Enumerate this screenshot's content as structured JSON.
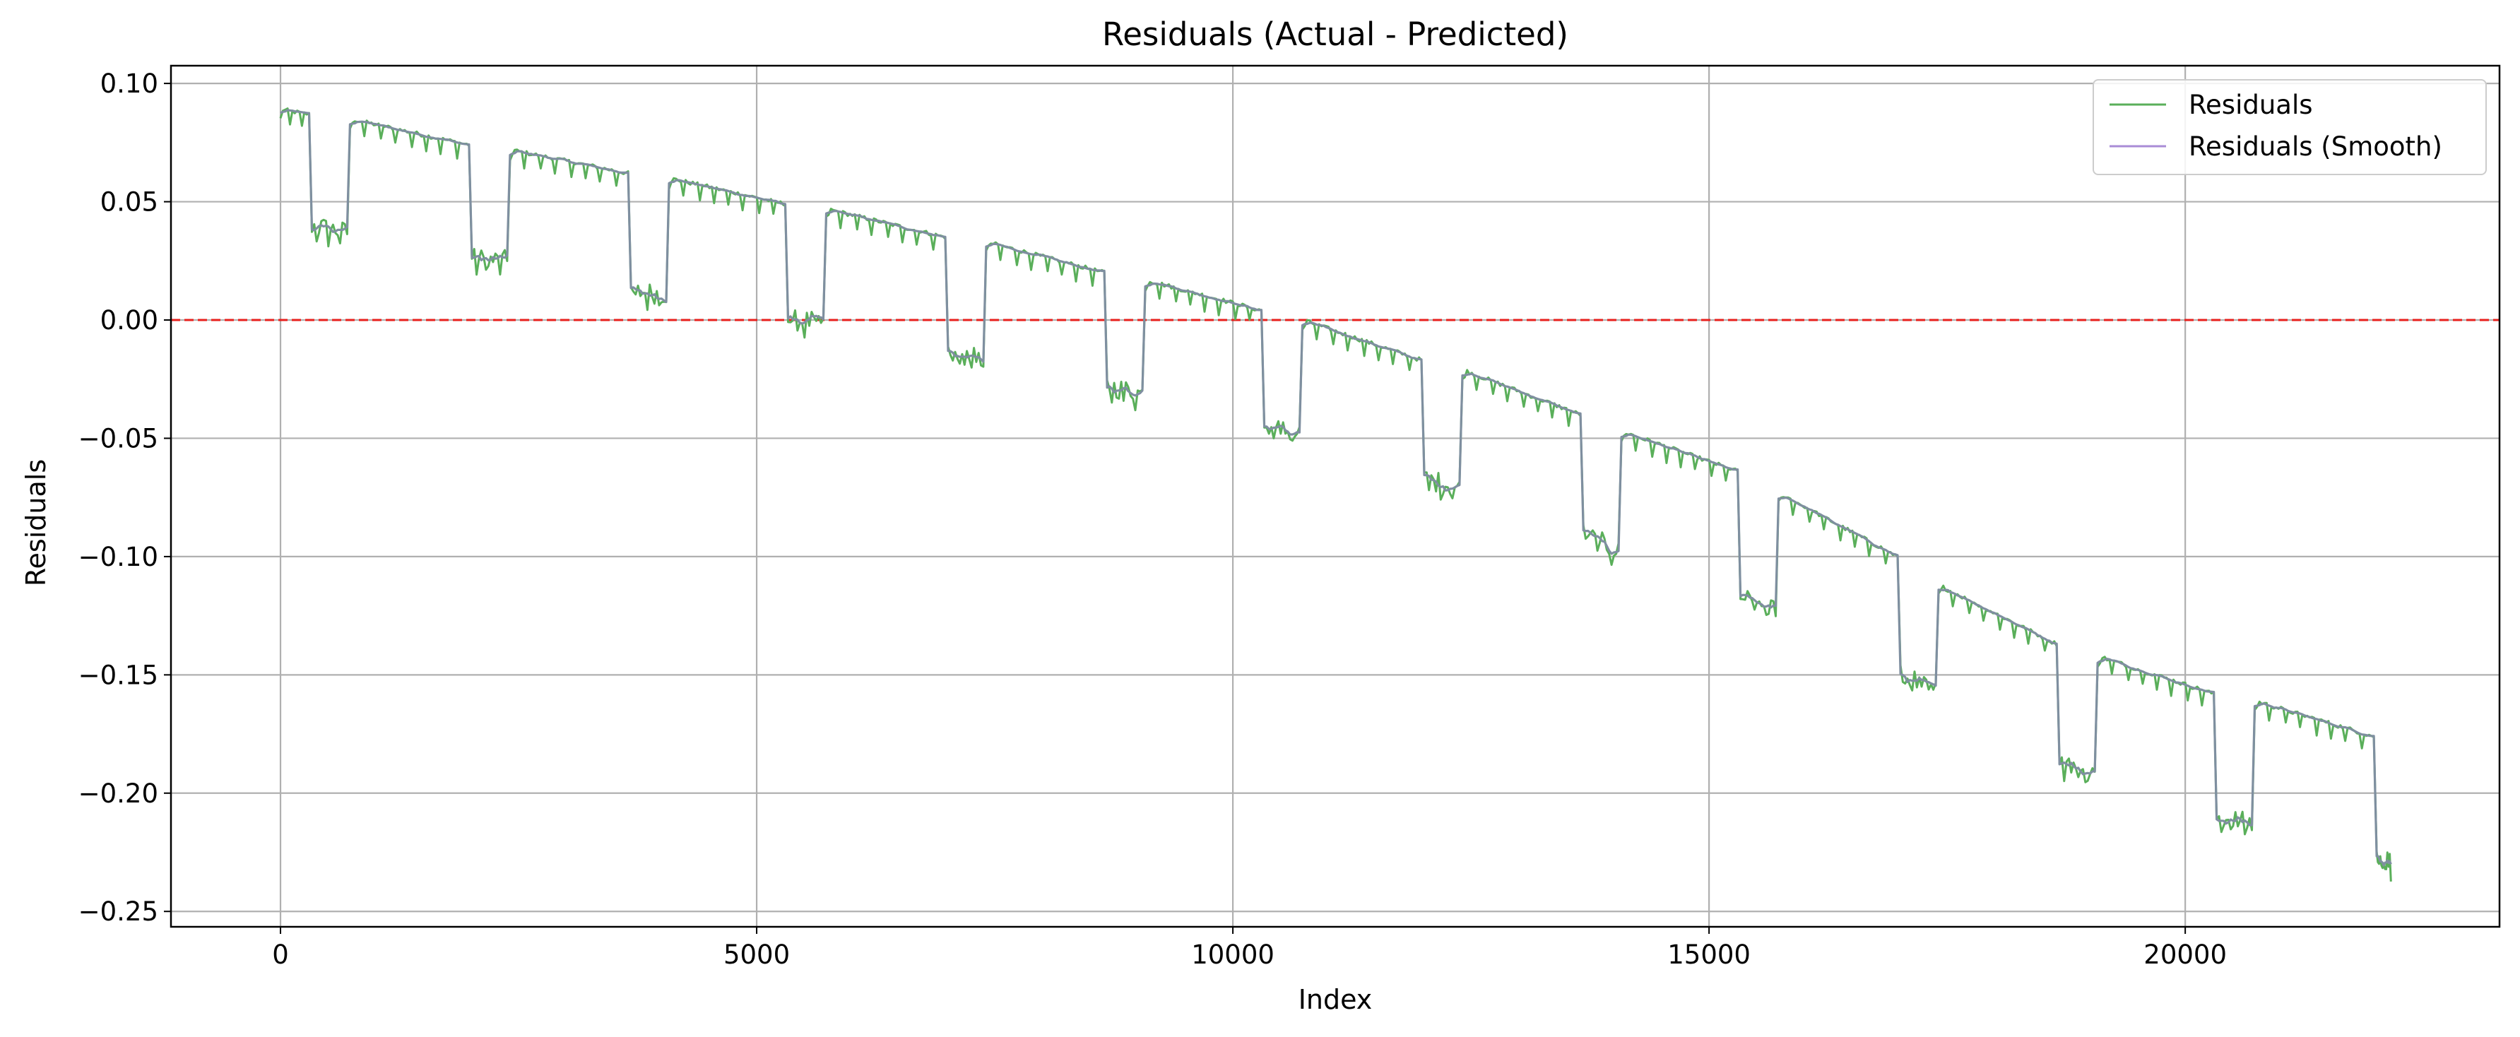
{
  "chart_data": {
    "type": "line",
    "title": "Residuals (Actual - Predicted)",
    "xlabel": "Index",
    "ylabel": "Residuals",
    "xlim": [
      -1150,
      23300
    ],
    "ylim": [
      -0.2565,
      0.1075
    ],
    "xticks": [
      0,
      5000,
      10000,
      15000,
      20000
    ],
    "xtick_labels": [
      "0",
      "5000",
      "10000",
      "15000",
      "20000"
    ],
    "yticks": [
      0.1,
      0.05,
      0.0,
      -0.05,
      -0.1,
      -0.15,
      -0.2,
      -0.25
    ],
    "ytick_labels": [
      "0.10",
      "0.05",
      "0.00",
      "−0.05",
      "−0.10",
      "−0.15",
      "−0.20",
      "−0.25"
    ],
    "grid": true,
    "legend_position": "top-right",
    "reference_line": {
      "y": 0.0,
      "color": "#e8201c",
      "style": "dashed"
    },
    "series": [
      {
        "name": "Residuals",
        "color": "#5aaf5a"
      },
      {
        "name": "Residuals (Smooth)",
        "color": "#a98cd6"
      }
    ],
    "overlap_color": "#7f8fa0",
    "segments": [
      {
        "x_start": 0,
        "x_end": 300,
        "y_start": 0.089,
        "y_end": 0.087
      },
      {
        "x_start": 330,
        "x_end": 700,
        "y_start": 0.04,
        "y_end": 0.037
      },
      {
        "x_start": 730,
        "x_end": 1980,
        "y_start": 0.085,
        "y_end": 0.074
      },
      {
        "x_start": 2010,
        "x_end": 2380,
        "y_start": 0.026,
        "y_end": 0.025
      },
      {
        "x_start": 2410,
        "x_end": 3650,
        "y_start": 0.072,
        "y_end": 0.062
      },
      {
        "x_start": 3680,
        "x_end": 4050,
        "y_start": 0.012,
        "y_end": 0.011
      },
      {
        "x_start": 4080,
        "x_end": 5300,
        "y_start": 0.06,
        "y_end": 0.049
      },
      {
        "x_start": 5330,
        "x_end": 5700,
        "y_start": 0.0,
        "y_end": -0.001
      },
      {
        "x_start": 5730,
        "x_end": 6980,
        "y_start": 0.047,
        "y_end": 0.035
      },
      {
        "x_start": 7010,
        "x_end": 7380,
        "y_start": -0.014,
        "y_end": -0.017
      },
      {
        "x_start": 7410,
        "x_end": 8650,
        "y_start": 0.033,
        "y_end": 0.02
      },
      {
        "x_start": 8680,
        "x_end": 9050,
        "y_start": -0.028,
        "y_end": -0.031
      },
      {
        "x_start": 9080,
        "x_end": 10300,
        "y_start": 0.017,
        "y_end": 0.004
      },
      {
        "x_start": 10330,
        "x_end": 10700,
        "y_start": -0.045,
        "y_end": -0.048
      },
      {
        "x_start": 10730,
        "x_end": 11980,
        "y_start": 0.0,
        "y_end": -0.017
      },
      {
        "x_start": 12010,
        "x_end": 12380,
        "y_start": -0.067,
        "y_end": -0.071
      },
      {
        "x_start": 12410,
        "x_end": 13650,
        "y_start": -0.021,
        "y_end": -0.04
      },
      {
        "x_start": 13680,
        "x_end": 14050,
        "y_start": -0.09,
        "y_end": -0.098
      },
      {
        "x_start": 14080,
        "x_end": 15300,
        "y_start": -0.047,
        "y_end": -0.064
      },
      {
        "x_start": 15330,
        "x_end": 15700,
        "y_start": -0.117,
        "y_end": -0.123
      },
      {
        "x_start": 15730,
        "x_end": 16980,
        "y_start": -0.073,
        "y_end": -0.1
      },
      {
        "x_start": 17010,
        "x_end": 17380,
        "y_start": -0.15,
        "y_end": -0.157
      },
      {
        "x_start": 17410,
        "x_end": 18650,
        "y_start": -0.112,
        "y_end": -0.137
      },
      {
        "x_start": 18680,
        "x_end": 19050,
        "y_start": -0.186,
        "y_end": -0.193
      },
      {
        "x_start": 19080,
        "x_end": 20300,
        "y_start": -0.142,
        "y_end": -0.158
      },
      {
        "x_start": 20330,
        "x_end": 20700,
        "y_start": -0.21,
        "y_end": -0.213
      },
      {
        "x_start": 20730,
        "x_end": 21980,
        "y_start": -0.161,
        "y_end": -0.176
      },
      {
        "x_start": 22010,
        "x_end": 22160,
        "y_start": -0.227,
        "y_end": -0.229
      }
    ]
  }
}
